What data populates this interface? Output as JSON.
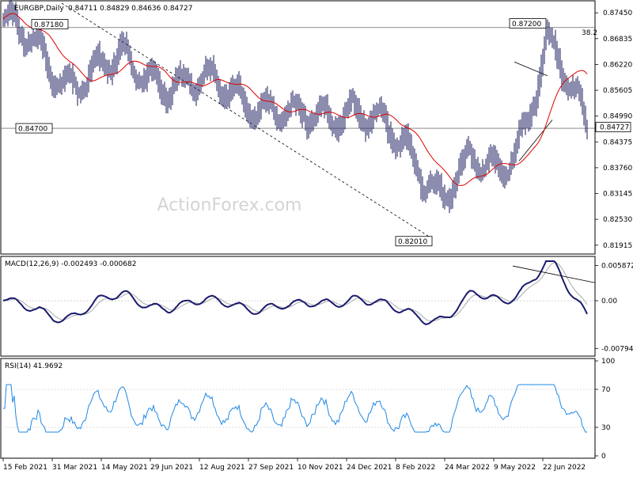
{
  "header": {
    "symbol": "EURGBP,Daily",
    "ohlc": "0.84711 0.84829 0.84636 0.84727"
  },
  "watermark": "ActionForex.com",
  "fib_label": "38.2",
  "chart_data": [
    {
      "type": "candlestick",
      "title": "EURGBP,Daily",
      "y_ticks": [
        "0.87450",
        "0.86835",
        "0.86220",
        "0.85605",
        "0.84990",
        "0.84375",
        "0.83760",
        "0.83145",
        "0.82530",
        "0.81915"
      ],
      "ylim": [
        0.8176,
        0.8768
      ],
      "current_price": "0.84727",
      "annotations": [
        {
          "text": "0.87180",
          "value": 0.8718
        },
        {
          "text": "0.87200",
          "value": 0.872
        },
        {
          "text": "0.84700",
          "value": 0.847
        },
        {
          "text": "0.82010",
          "value": 0.8201
        }
      ],
      "horizontal_lines": [
        0.871,
        0.847
      ],
      "series": [
        {
          "name": "price",
          "x_fraction": [
            0,
            0.1,
            0.2,
            0.3,
            0.4,
            0.5,
            0.6,
            0.7,
            0.75,
            0.8,
            0.85,
            0.9,
            0.93,
            0.96,
            1.0
          ],
          "values": [
            0.873,
            0.859,
            0.862,
            0.858,
            0.856,
            0.848,
            0.853,
            0.84,
            0.832,
            0.838,
            0.836,
            0.851,
            0.868,
            0.859,
            0.847
          ]
        }
      ]
    },
    {
      "type": "line",
      "title": "MACD(12,26,9) -0.002493 -0.000682",
      "y_ticks": [
        "0.005872",
        "0.00",
        "-0.007945"
      ],
      "ylim": [
        -0.0087,
        0.0066
      ]
    },
    {
      "type": "line",
      "title": "RSI(14) 41.9692",
      "y_ticks": [
        "100",
        "70",
        "30",
        "0"
      ],
      "ylim": [
        0,
        100
      ],
      "levels": [
        70,
        30
      ]
    }
  ],
  "x_axis": {
    "labels": [
      "15 Feb 2021",
      "31 Mar 2021",
      "14 May 2021",
      "29 Jun 2021",
      "12 Aug 2021",
      "27 Sep 2021",
      "10 Nov 2021",
      "24 Dec 2021",
      "8 Feb 2022",
      "24 Mar 2022",
      "9 May 2022",
      "22 Jun 2022"
    ]
  },
  "colors": {
    "candle": "#1a1a5c",
    "ma": "#dd0000",
    "macd": "#1a1a6e",
    "signal": "#aaaaaa",
    "rsi": "#1e88e5",
    "grid": "#bbbbbb"
  }
}
